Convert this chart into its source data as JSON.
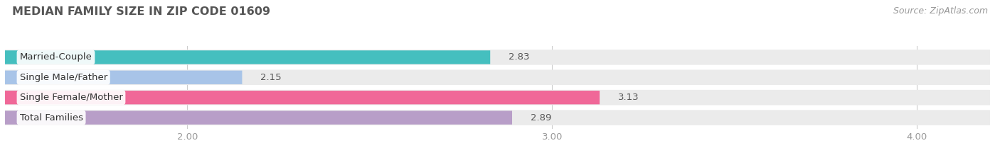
{
  "title": "MEDIAN FAMILY SIZE IN ZIP CODE 01609",
  "source": "Source: ZipAtlas.com",
  "categories": [
    "Married-Couple",
    "Single Male/Father",
    "Single Female/Mother",
    "Total Families"
  ],
  "values": [
    2.83,
    2.15,
    3.13,
    2.89
  ],
  "bar_colors": [
    "#45bfbf",
    "#a8c4e8",
    "#f06898",
    "#b89ec8"
  ],
  "xlim_left": 1.5,
  "xlim_right": 4.2,
  "xmin": 1.5,
  "xticks": [
    2.0,
    3.0,
    4.0
  ],
  "xtick_labels": [
    "2.00",
    "3.00",
    "4.00"
  ],
  "background_color": "#ffffff",
  "row_bg_color": "#ebebeb",
  "title_fontsize": 11.5,
  "label_fontsize": 9.5,
  "value_fontsize": 9.5,
  "source_fontsize": 9
}
